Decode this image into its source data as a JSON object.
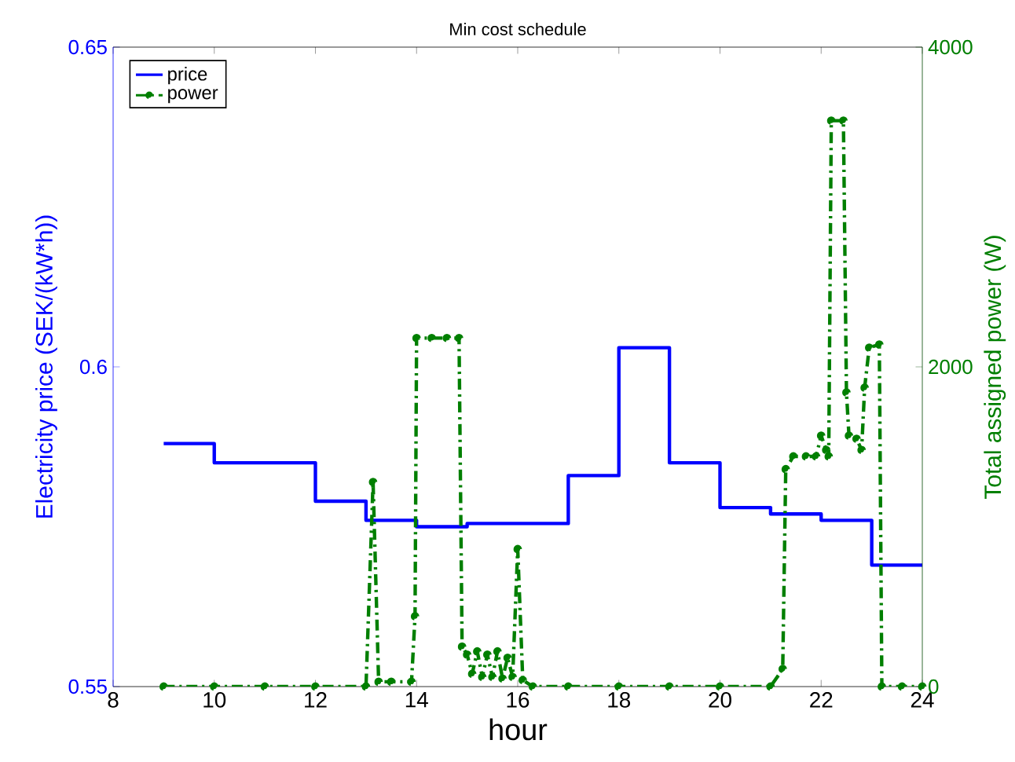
{
  "chart_data": {
    "type": "line",
    "title": "Min cost schedule",
    "xlabel": "hour",
    "ylabel": "Electricity price (SEK/(kW*h))",
    "y2label": "Total assigned power (W)",
    "xlim": [
      8,
      24
    ],
    "xticks": [
      8,
      10,
      12,
      14,
      16,
      18,
      20,
      22,
      24
    ],
    "ylim": [
      0.55,
      0.65
    ],
    "yticks": [
      0.55,
      0.6,
      0.65
    ],
    "y2lim": [
      0,
      4000
    ],
    "y2ticks": [
      0,
      2000,
      4000
    ],
    "legend": "top left",
    "series": [
      {
        "name": "price",
        "type": "step",
        "color": "#0000ff",
        "line_style": "solid",
        "marker": "none",
        "x": [
          9,
          10,
          12,
          13,
          14,
          15,
          17,
          18,
          19,
          20,
          21,
          22,
          23,
          24
        ],
        "values": [
          0.588,
          0.585,
          0.579,
          0.576,
          0.575,
          0.5755,
          0.583,
          0.603,
          0.585,
          0.578,
          0.577,
          0.576,
          0.569,
          0.569
        ]
      },
      {
        "name": "power",
        "axis": "y2",
        "color": "#007f00",
        "line_style": "dashed",
        "marker": "circle",
        "x": [
          9,
          10,
          11,
          12,
          13,
          13.14,
          13.25,
          13.5,
          13.9,
          13.97,
          14.0,
          14.3,
          14.6,
          14.84,
          14.9,
          15.0,
          15.1,
          15.2,
          15.3,
          15.4,
          15.5,
          15.6,
          15.7,
          15.8,
          15.9,
          16.0,
          16.1,
          16.3,
          17,
          18,
          19,
          20,
          21,
          21.24,
          21.3,
          21.45,
          21.7,
          21.9,
          22.0,
          22.1,
          22.15,
          22.2,
          22.44,
          22.5,
          22.55,
          22.7,
          22.8,
          22.86,
          22.95,
          23.15,
          23.2,
          23.6,
          24
        ],
        "values": [
          0,
          0,
          0,
          0,
          0,
          1280,
          30,
          30,
          30,
          440,
          2180,
          2180,
          2180,
          2180,
          250,
          200,
          80,
          220,
          60,
          200,
          60,
          220,
          50,
          180,
          60,
          860,
          40,
          0,
          0,
          0,
          0,
          0,
          0,
          110,
          1360,
          1440,
          1440,
          1440,
          1570,
          1480,
          1440,
          3540,
          3540,
          1840,
          1570,
          1550,
          1480,
          1870,
          2120,
          2140,
          0,
          0,
          0
        ]
      }
    ]
  }
}
